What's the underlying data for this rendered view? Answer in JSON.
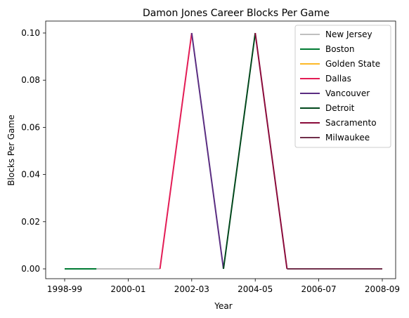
{
  "chart_data": {
    "type": "line",
    "title": "Damon Jones Career Blocks Per Game",
    "xlabel": "Year",
    "ylabel": "Blocks Per Game",
    "x_categories": [
      "1998-99",
      "1999-00",
      "2000-01",
      "2001-02",
      "2002-03",
      "2003-04",
      "2004-05",
      "2005-06",
      "2006-07",
      "2007-08",
      "2008-09"
    ],
    "x_tick_labels": [
      "1998-99",
      "2000-01",
      "2002-03",
      "2004-05",
      "2006-07",
      "2008-09"
    ],
    "ylim": [
      0,
      0.1
    ],
    "y_ticks": [
      "0.00",
      "0.02",
      "0.04",
      "0.06",
      "0.08",
      "0.10"
    ],
    "grid": false,
    "legend_position": "top-right",
    "series": [
      {
        "name": "New Jersey",
        "color": "#bfbfbf",
        "points": [
          [
            "1999-00",
            0.0
          ],
          [
            "2001-02",
            0.0
          ]
        ]
      },
      {
        "name": "Boston",
        "color": "#007a33",
        "points": [
          [
            "1998-99",
            0.0
          ],
          [
            "1999-00",
            0.0
          ]
        ]
      },
      {
        "name": "Golden State",
        "color": "#fdb927",
        "points": []
      },
      {
        "name": "Dallas",
        "color": "#e31c55",
        "points": [
          [
            "2001-02",
            0.0
          ],
          [
            "2002-03",
            0.1
          ]
        ]
      },
      {
        "name": "Vancouver",
        "color": "#5a2d81",
        "points": [
          [
            "2002-03",
            0.1
          ],
          [
            "2003-04",
            0.0
          ]
        ]
      },
      {
        "name": "Detroit",
        "color": "#00471b",
        "points": [
          [
            "2003-04",
            0.0
          ],
          [
            "2004-05",
            0.1
          ]
        ]
      },
      {
        "name": "Sacramento",
        "color": "#8a0a3a",
        "points": [
          [
            "2004-05",
            0.1
          ],
          [
            "2005-06",
            0.0
          ]
        ]
      },
      {
        "name": "Milwaukee",
        "color": "#702f4a",
        "points": [
          [
            "2005-06",
            0.0
          ],
          [
            "2008-09",
            0.0
          ]
        ]
      }
    ]
  }
}
